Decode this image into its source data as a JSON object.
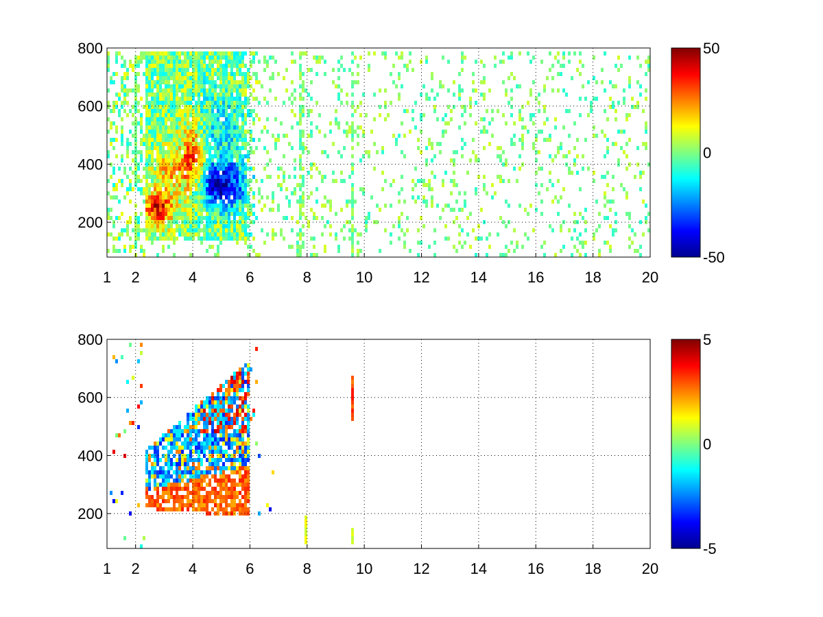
{
  "chart_data": [
    {
      "type": "heatmap",
      "title": "",
      "xlabel": "",
      "ylabel": "",
      "xlim": [
        1,
        20
      ],
      "ylim": [
        80,
        800
      ],
      "x_ticks": [
        1,
        2,
        4,
        6,
        8,
        10,
        12,
        14,
        16,
        18,
        20
      ],
      "y_ticks": [
        200,
        400,
        600,
        800
      ],
      "grid": true,
      "colormap": "jet",
      "colorbar": {
        "range": [
          -50,
          50
        ],
        "ticks": [
          -50,
          0,
          50
        ]
      },
      "features": {
        "dense_region": {
          "x_range": [
            2.3,
            6.3
          ],
          "y_range": [
            140,
            800
          ]
        },
        "positive_blob_low": {
          "x": 2.8,
          "y": 250,
          "value": 40
        },
        "positive_blob_high": {
          "x": 4.0,
          "y": 420,
          "value": 35
        },
        "negative_blob": {
          "x": 5.0,
          "y": 330,
          "value": -40
        },
        "sparse_region": {
          "x_range": [
            6.3,
            20
          ],
          "value_range": [
            -10,
            10
          ]
        },
        "vertical_streaks_x": [
          2.0,
          7.8,
          9.6
        ]
      }
    },
    {
      "type": "heatmap",
      "title": "",
      "xlabel": "",
      "ylabel": "",
      "xlim": [
        1,
        20
      ],
      "ylim": [
        80,
        800
      ],
      "x_ticks": [
        1,
        2,
        4,
        6,
        8,
        10,
        12,
        14,
        16,
        18,
        20
      ],
      "y_ticks": [
        200,
        400,
        600,
        800
      ],
      "grid": true,
      "colormap": "jet",
      "colorbar": {
        "range": [
          -5,
          5
        ],
        "ticks": [
          -5,
          0,
          5
        ]
      },
      "features": {
        "dense_region": {
          "x_range": [
            2.3,
            6.0
          ],
          "y_range": [
            160,
            760
          ]
        },
        "positive_band": {
          "x_range": [
            2.4,
            6.0
          ],
          "y_start": 240,
          "y_end": 380,
          "value": 3.5
        },
        "negative_band": {
          "x_range": [
            2.6,
            5.4
          ],
          "y_start": 380,
          "y_end": 620,
          "value": -3.5
        },
        "isolated_columns": [
          {
            "x": 9.6,
            "y_range": [
              520,
              690
            ],
            "value": 3
          },
          {
            "x": 9.6,
            "y_range": [
              90,
              150
            ],
            "value": 1
          },
          {
            "x": 7.95,
            "y_range": [
              100,
              190
            ],
            "value": 1
          }
        ]
      }
    }
  ]
}
